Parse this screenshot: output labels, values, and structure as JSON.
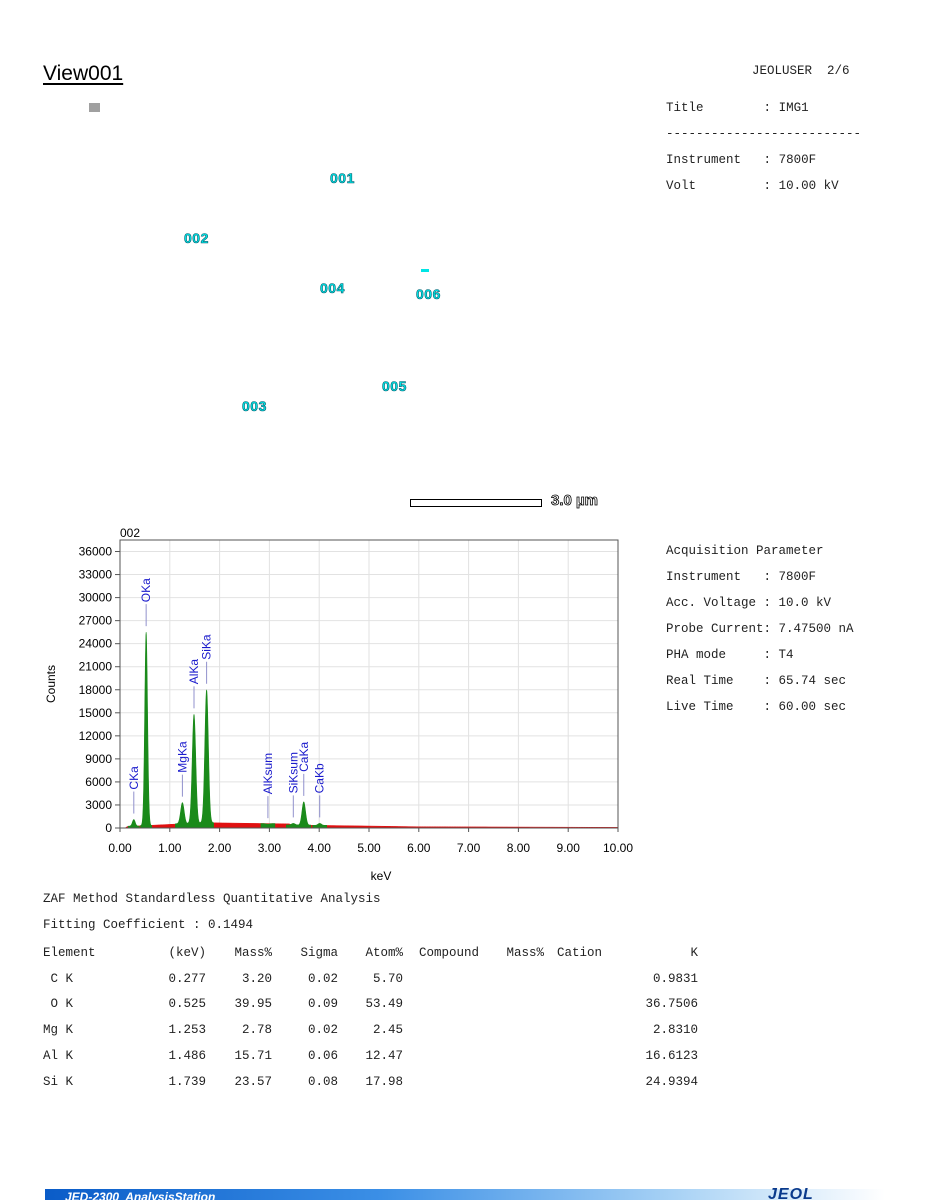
{
  "view_title": "View001",
  "header_user": "JEOLUSER  2/6",
  "image_info": [
    {
      "label": "Title",
      "sep": ":",
      "value": "IMG1"
    },
    {
      "divider": "--------------------------"
    },
    {
      "label": "Instrument",
      "sep": ":",
      "value": "7800F"
    },
    {
      "label": "Volt",
      "sep": ":",
      "value": "10.00 kV"
    }
  ],
  "points": [
    "001",
    "002",
    "003",
    "004",
    "005",
    "006"
  ],
  "scale_bar_label": "3.0 µm",
  "acquisition": {
    "heading": "Acquisition Parameter",
    "rows": [
      {
        "label": "Instrument",
        "value": "7800F"
      },
      {
        "label": "Acc. Voltage",
        "value": "10.0 kV"
      },
      {
        "label": "Probe Current",
        "value": "7.47500 nA"
      },
      {
        "label": "PHA mode",
        "value": "T4"
      },
      {
        "label": "Real Time",
        "value": "65.74 sec"
      },
      {
        "label": "Live Time",
        "value": "60.00 sec"
      }
    ]
  },
  "chart_data": {
    "type": "area",
    "title": "002",
    "xlabel": "keV",
    "ylabel": "Counts",
    "xlim": [
      0,
      10
    ],
    "ylim": [
      0,
      37500
    ],
    "x_ticks": [
      "0.00",
      "1.00",
      "2.00",
      "3.00",
      "4.00",
      "5.00",
      "6.00",
      "7.00",
      "8.00",
      "9.00",
      "10.00"
    ],
    "y_ticks": [
      "0",
      "3000",
      "6000",
      "9000",
      "12000",
      "15000",
      "18000",
      "21000",
      "24000",
      "27000",
      "30000",
      "33000",
      "36000"
    ],
    "grid": true,
    "colors": {
      "peaks": "#1a8a1a",
      "background": "#e01010",
      "labels": "#1a1acc"
    },
    "peaks": [
      {
        "name": "CKa",
        "x": 0.277,
        "y": 1100
      },
      {
        "name": "OKa",
        "x": 0.525,
        "y": 25500
      },
      {
        "name": "MgKa",
        "x": 1.253,
        "y": 3300
      },
      {
        "name": "AlKa",
        "x": 1.486,
        "y": 14800
      },
      {
        "name": "SiKa",
        "x": 1.739,
        "y": 18000
      },
      {
        "name": "AlKsum",
        "x": 2.97,
        "y": 500
      },
      {
        "name": "SiKsum",
        "x": 3.48,
        "y": 600
      },
      {
        "name": "CaKa",
        "x": 3.69,
        "y": 3400
      },
      {
        "name": "CaKb",
        "x": 4.01,
        "y": 600
      }
    ]
  },
  "zaf": {
    "method": "ZAF Method Standardless Quantitative Analysis",
    "fitting": "Fitting Coefficient : 0.1494",
    "headers": [
      "Element",
      "(keV)",
      "Mass%",
      "Sigma",
      "Atom%",
      "Compound",
      "Mass%",
      "Cation",
      "K"
    ],
    "rows": [
      {
        "element": " C K",
        "kev": "0.277",
        "mass": "3.20",
        "sigma": "0.02",
        "atom": "5.70",
        "k": "0.9831"
      },
      {
        "element": " O K",
        "kev": "0.525",
        "mass": "39.95",
        "sigma": "0.09",
        "atom": "53.49",
        "k": "36.7506"
      },
      {
        "element": "Mg K",
        "kev": "1.253",
        "mass": "2.78",
        "sigma": "0.02",
        "atom": "2.45",
        "k": "2.8310"
      },
      {
        "element": "Al K",
        "kev": "1.486",
        "mass": "15.71",
        "sigma": "0.06",
        "atom": "12.47",
        "k": "16.6123"
      },
      {
        "element": "Si K",
        "kev": "1.739",
        "mass": "23.57",
        "sigma": "0.08",
        "atom": "17.98",
        "k": "24.9394"
      }
    ]
  },
  "footer": {
    "product": "JED-2300  AnalysisStation",
    "logo": "JEOL"
  }
}
